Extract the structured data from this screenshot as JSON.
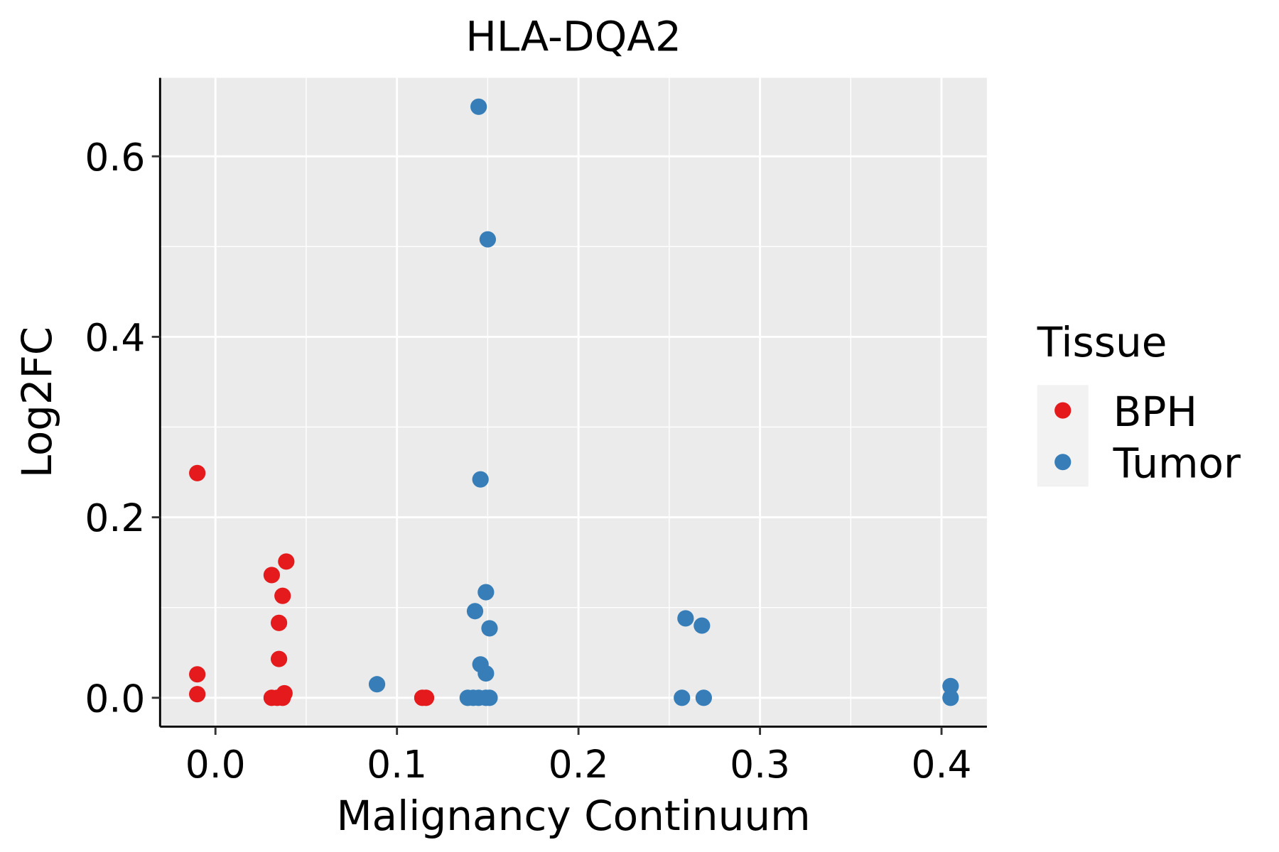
{
  "chart_data": {
    "type": "scatter",
    "title": "HLA-DQA2",
    "xlabel": "Malignancy Continuum",
    "ylabel": "Log2FC",
    "xlim": [
      -0.0305,
      0.425
    ],
    "ylim": [
      -0.032,
      0.687
    ],
    "xticks": [
      0.0,
      0.1,
      0.2,
      0.3,
      0.4
    ],
    "xtick_labels": [
      "0.0",
      "0.1",
      "0.2",
      "0.3",
      "0.4"
    ],
    "yticks": [
      0.0,
      0.2,
      0.4,
      0.6
    ],
    "ytick_labels": [
      "0.0",
      "0.2",
      "0.4",
      "0.6"
    ],
    "grid": true,
    "legend": {
      "title": "Tissue",
      "placement": "right"
    },
    "series": [
      {
        "name": "BPH",
        "color": "#E41A1C",
        "points": [
          [
            -0.01,
            0.249
          ],
          [
            -0.01,
            0.026
          ],
          [
            -0.01,
            0.004
          ],
          [
            0.031,
            0.136
          ],
          [
            0.039,
            0.151
          ],
          [
            0.037,
            0.113
          ],
          [
            0.035,
            0.083
          ],
          [
            0.035,
            0.043
          ],
          [
            0.031,
            0
          ],
          [
            0.034,
            0
          ],
          [
            0.037,
            0
          ],
          [
            0.038,
            0.005
          ],
          [
            0.114,
            0
          ],
          [
            0.116,
            0
          ]
        ]
      },
      {
        "name": "Tumor",
        "color": "#377EB8",
        "points": [
          [
            0.145,
            0.655
          ],
          [
            0.15,
            0.508
          ],
          [
            0.146,
            0.242
          ],
          [
            0.149,
            0.117
          ],
          [
            0.143,
            0.096
          ],
          [
            0.151,
            0.077
          ],
          [
            0.146,
            0.037
          ],
          [
            0.149,
            0.027
          ],
          [
            0.089,
            0.015
          ],
          [
            0.139,
            0
          ],
          [
            0.142,
            0
          ],
          [
            0.145,
            0
          ],
          [
            0.149,
            0
          ],
          [
            0.151,
            0
          ],
          [
            0.259,
            0.088
          ],
          [
            0.268,
            0.08
          ],
          [
            0.257,
            0
          ],
          [
            0.269,
            0
          ],
          [
            0.405,
            0.013
          ],
          [
            0.405,
            0
          ]
        ]
      }
    ]
  }
}
